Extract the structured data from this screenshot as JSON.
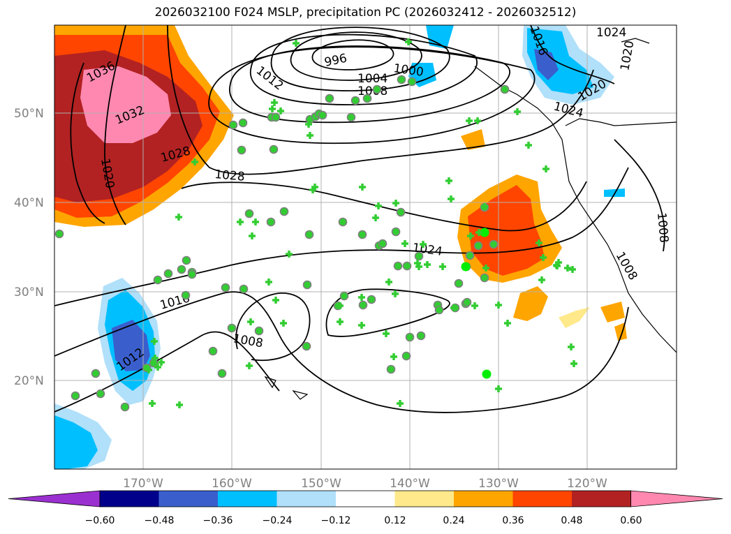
{
  "title": "2026032100 F024 MSLP, precipitation PC (2026032412 - 2026032512)",
  "map": {
    "lat_labels": [
      "50°N",
      "40°N",
      "30°N",
      "20°N"
    ],
    "lon_labels": [
      "170°W",
      "160°W",
      "150°W",
      "140°W",
      "130°W",
      "120°W"
    ],
    "isobar_labels": [
      "1036",
      "1032",
      "1028",
      "1020",
      "1028",
      "1012",
      "996",
      "1004",
      "1008",
      "1000",
      "1016",
      "1024",
      "1020",
      "1020",
      "1024",
      "1016",
      "1012",
      "1008",
      "1024",
      "1008",
      "1008"
    ]
  },
  "colorbar": {
    "ticks": [
      "−0.60",
      "−0.48",
      "−0.36",
      "−0.24",
      "−0.12",
      "0.12",
      "0.24",
      "0.36",
      "0.48",
      "0.60"
    ],
    "colors": [
      "#9b30d0",
      "#00008b",
      "#3a5fcd",
      "#00bfff",
      "#b0e0fa",
      "#ffffff",
      "#ffe98a",
      "#ffa500",
      "#ff4500",
      "#b22222",
      "#ff88b0"
    ]
  },
  "station_symbols": {
    "circle_fill": "#32cd32",
    "circle_stroke": "#808080",
    "cross_color": "#32cd32"
  }
}
